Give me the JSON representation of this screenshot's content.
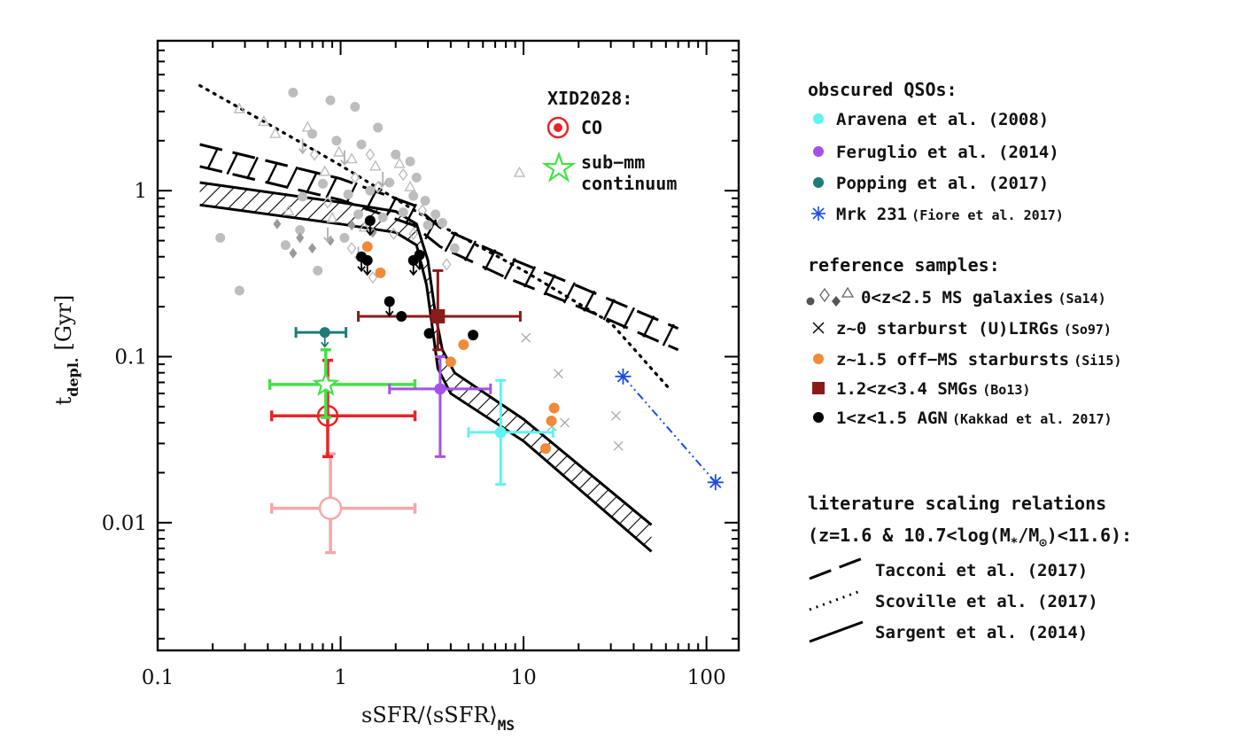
{
  "chart_data": {
    "type": "scatter",
    "xlabel_main": "sSFR/⟨sSFR⟩",
    "xlabel_sub": "MS",
    "ylabel_main": "t",
    "ylabel_sub": "depl.",
    "ylabel_unit": "[Gyr]",
    "xscale": "log",
    "yscale": "log",
    "xlim": [
      0.1,
      150
    ],
    "ylim": [
      0.0017,
      8
    ],
    "x_ticks": [
      {
        "v": 0.1,
        "label": "0.1"
      },
      {
        "v": 1,
        "label": "1"
      },
      {
        "v": 10,
        "label": "10"
      },
      {
        "v": 100,
        "label": "100"
      }
    ],
    "y_ticks": [
      {
        "v": 0.01,
        "label": "0.01"
      },
      {
        "v": 0.1,
        "label": "0.1"
      },
      {
        "v": 1,
        "label": "1"
      }
    ],
    "xid_title": "XID2028:",
    "xid_co_label": "CO",
    "xid_submm_label_1": "sub−mm",
    "xid_submm_label_2": "continuum",
    "legend": {
      "qso_header": "obscured QSOs:",
      "aravena": "Aravena et al. (2008)",
      "feruglio": "Feruglio et al. (2014)",
      "popping": "Popping et al. (2017)",
      "mrk_main": "Mrk 231",
      "mrk_ref": "(Fiore et al. 2017)",
      "ref_header": "reference samples:",
      "ms_main": "0<z<2.5 MS galaxies",
      "ms_ref": "(Sa14)",
      "ulirg_main": "z~0 starburst (U)LIRGs",
      "ulirg_ref": "(So97)",
      "offms_main": "z~1.5 off−MS starbursts",
      "offms_ref": "(Si15)",
      "smg_main": "1.2<z<3.4 SMGs",
      "smg_ref": "(Bo13)",
      "agn_main": "1<z<1.5 AGN",
      "agn_ref": "(Kakkad et al. 2017)",
      "lit_header_1": "literature scaling relations",
      "lit_header_2a": "(z=1.6 & 10.7<log(M",
      "lit_header_2b": "*",
      "lit_header_2c": "/M",
      "lit_header_2d": "⊙",
      "lit_header_2e": ")<11.6):",
      "tacconi": "Tacconi et al. (2017)",
      "scoville": "Scoville et al. (2017)",
      "sargent": "Sargent et al. (2014)"
    },
    "colors": {
      "aravena": "#5ff3f3",
      "feruglio": "#a352e8",
      "popping": "#1e7b78",
      "mrk": "#1a4de0",
      "offms": "#f28a3a",
      "smg": "#8b1a1a",
      "agn": "#000000",
      "ms": "#bdbdbd",
      "ulirg": "#a8a8a8",
      "co": "#e8242a",
      "co_faint": "#f4a8a8",
      "submm": "#46e046"
    },
    "series": [
      {
        "name": "Aravena et al. (2008)",
        "points": [
          {
            "x": 7.5,
            "y": 0.035,
            "xerr": [
              5.0,
              14.5
            ],
            "yerr": [
              0.017,
              0.072
            ]
          }
        ]
      },
      {
        "name": "Feruglio et al. (2014)",
        "points": [
          {
            "x": 3.5,
            "y": 0.064,
            "xerr": [
              1.85,
              6.6
            ],
            "yerr": [
              0.025,
              0.1
            ]
          }
        ]
      },
      {
        "name": "Popping et al. (2017)",
        "points": [
          {
            "x": 0.82,
            "y": 0.14,
            "xerr": [
              0.57,
              1.07
            ],
            "yerr": [
              0.11,
              0.16
            ]
          }
        ]
      },
      {
        "name": "Mrk 231",
        "points": [
          {
            "x": 35,
            "y": 0.076
          },
          {
            "x": 112,
            "y": 0.0175
          }
        ]
      },
      {
        "name": "1.2<z<3.4 SMGs",
        "points": [
          {
            "x": 3.4,
            "y": 0.175,
            "xerr": [
              1.25,
              9.6
            ],
            "yerr": [
              0.11,
              0.33
            ]
          }
        ]
      },
      {
        "name": "XID2028 CO",
        "points": [
          {
            "x": 0.85,
            "y": 0.044,
            "xerr": [
              0.42,
              2.55
            ],
            "yerr": [
              0.025,
              0.095
            ]
          }
        ]
      },
      {
        "name": "XID2028 CO (faint)",
        "points": [
          {
            "x": 0.88,
            "y": 0.0122,
            "xerr": [
              0.42,
              2.55
            ],
            "yerr": [
              0.0066,
              0.026
            ]
          }
        ]
      },
      {
        "name": "XID2028 sub-mm continuum",
        "points": [
          {
            "x": 0.83,
            "y": 0.068,
            "xerr": [
              0.41,
              2.55
            ],
            "yerr": [
              0.043,
              0.11
            ]
          }
        ]
      },
      {
        "name": "z~1.5 off-MS starbursts",
        "points": [
          {
            "x": 1.4,
            "y": 0.46
          },
          {
            "x": 1.65,
            "y": 0.32
          },
          {
            "x": 4.0,
            "y": 0.093
          },
          {
            "x": 4.7,
            "y": 0.118
          },
          {
            "x": 13.2,
            "y": 0.028
          },
          {
            "x": 14.2,
            "y": 0.041
          },
          {
            "x": 14.7,
            "y": 0.049
          }
        ]
      },
      {
        "name": "1<z<1.5 AGN",
        "upper_limit_x": [
          1.3,
          1.45,
          1.85,
          2.5,
          2.7,
          2.85
        ],
        "points": [
          {
            "x": 1.45,
            "y": 0.66
          },
          {
            "x": 1.3,
            "y": 0.4
          },
          {
            "x": 1.4,
            "y": 0.38
          },
          {
            "x": 2.5,
            "y": 0.38
          },
          {
            "x": 2.7,
            "y": 0.41
          },
          {
            "x": 1.85,
            "y": 0.215
          },
          {
            "x": 2.15,
            "y": 0.175
          },
          {
            "x": 3.05,
            "y": 0.138
          },
          {
            "x": 5.3,
            "y": 0.135
          }
        ]
      },
      {
        "name": "z~0 starburst (U)LIRGs",
        "points": [
          {
            "x": 10.3,
            "y": 0.13
          },
          {
            "x": 15.5,
            "y": 0.079
          },
          {
            "x": 14.3,
            "y": 0.038
          },
          {
            "x": 16.8,
            "y": 0.04
          },
          {
            "x": 32,
            "y": 0.044
          },
          {
            "x": 33,
            "y": 0.029
          }
        ]
      },
      {
        "name": "0<z<2.5 MS galaxies",
        "points": [
          {
            "x": 0.55,
            "y": 3.9
          },
          {
            "x": 0.88,
            "y": 3.5
          },
          {
            "x": 1.2,
            "y": 3.2
          },
          {
            "x": 0.7,
            "y": 2.2
          },
          {
            "x": 0.95,
            "y": 2.0
          },
          {
            "x": 1.3,
            "y": 1.9
          },
          {
            "x": 1.6,
            "y": 2.4
          },
          {
            "x": 2.0,
            "y": 1.65
          },
          {
            "x": 2.4,
            "y": 1.5
          },
          {
            "x": 2.6,
            "y": 1.2
          },
          {
            "x": 1.85,
            "y": 1.12
          },
          {
            "x": 1.45,
            "y": 1.0
          },
          {
            "x": 1.1,
            "y": 0.95
          },
          {
            "x": 0.8,
            "y": 1.1
          },
          {
            "x": 0.62,
            "y": 0.92
          },
          {
            "x": 2.9,
            "y": 0.87
          },
          {
            "x": 3.3,
            "y": 0.72
          },
          {
            "x": 3.6,
            "y": 0.64
          },
          {
            "x": 2.2,
            "y": 0.74
          },
          {
            "x": 1.7,
            "y": 0.69
          },
          {
            "x": 0.22,
            "y": 0.52
          },
          {
            "x": 0.28,
            "y": 0.25
          },
          {
            "x": 0.6,
            "y": 0.58
          },
          {
            "x": 4.2,
            "y": 0.45
          },
          {
            "x": 3.0,
            "y": 0.62
          },
          {
            "x": 2.5,
            "y": 0.93
          },
          {
            "x": 0.5,
            "y": 0.47
          },
          {
            "x": 0.75,
            "y": 0.33
          },
          {
            "x": 1.05,
            "y": 0.52
          },
          {
            "x": 1.25,
            "y": 0.72
          }
        ]
      },
      {
        "name": "MS triangles",
        "points": [
          {
            "x": 0.28,
            "y": 3.1
          },
          {
            "x": 0.38,
            "y": 2.6
          },
          {
            "x": 0.44,
            "y": 2.2
          },
          {
            "x": 0.66,
            "y": 2.4
          },
          {
            "x": 0.98,
            "y": 1.7
          },
          {
            "x": 1.15,
            "y": 1.55
          },
          {
            "x": 1.55,
            "y": 1.4
          },
          {
            "x": 2.1,
            "y": 1.45
          },
          {
            "x": 2.4,
            "y": 1.05
          },
          {
            "x": 0.82,
            "y": 1.3
          },
          {
            "x": 0.9,
            "y": 0.68
          },
          {
            "x": 1.35,
            "y": 0.6
          },
          {
            "x": 0.52,
            "y": 0.75
          },
          {
            "x": 9.5,
            "y": 1.28
          }
        ]
      },
      {
        "name": "MS diamonds",
        "points": [
          {
            "x": 0.72,
            "y": 1.65
          },
          {
            "x": 1.45,
            "y": 1.65
          },
          {
            "x": 1.6,
            "y": 1.05
          },
          {
            "x": 1.2,
            "y": 1.2
          },
          {
            "x": 2.2,
            "y": 1.25
          },
          {
            "x": 2.8,
            "y": 0.76
          },
          {
            "x": 1.95,
            "y": 0.55
          },
          {
            "x": 1.15,
            "y": 0.45
          },
          {
            "x": 1.5,
            "y": 0.3
          },
          {
            "x": 3.8,
            "y": 0.36
          },
          {
            "x": 2.5,
            "y": 0.55
          },
          {
            "x": 0.85,
            "y": 0.85
          }
        ]
      },
      {
        "name": "MS filled diamonds",
        "points": [
          {
            "x": 0.45,
            "y": 0.63
          },
          {
            "x": 0.6,
            "y": 0.52
          },
          {
            "x": 0.55,
            "y": 0.42
          },
          {
            "x": 0.88,
            "y": 0.5
          },
          {
            "x": 1.15,
            "y": 0.62
          },
          {
            "x": 1.5,
            "y": 0.56
          },
          {
            "x": 0.7,
            "y": 0.45
          }
        ]
      },
      {
        "name": "MS upper limits",
        "points": [
          {
            "x": 0.62,
            "y": 2.05
          },
          {
            "x": 1.05,
            "y": 1.75
          },
          {
            "x": 0.85,
            "y": 0.6
          },
          {
            "x": 1.25,
            "y": 0.46
          },
          {
            "x": 1.7,
            "y": 1.3
          }
        ]
      }
    ],
    "relations": {
      "tacconi": {
        "upper": [
          [
            0.17,
            1.9
          ],
          [
            1.0,
            1.18
          ],
          [
            2.5,
            0.82
          ],
          [
            3.5,
            0.6
          ],
          [
            8,
            0.4
          ],
          [
            20,
            0.265
          ],
          [
            70,
            0.148
          ]
        ],
        "lower": [
          [
            0.17,
            1.4
          ],
          [
            1.0,
            0.88
          ],
          [
            2.5,
            0.62
          ],
          [
            3.5,
            0.46
          ],
          [
            8,
            0.3
          ],
          [
            20,
            0.2
          ],
          [
            70,
            0.11
          ]
        ]
      },
      "scoville": [
        [
          0.17,
          4.3
        ],
        [
          0.5,
          2.2
        ],
        [
          1,
          1.42
        ],
        [
          3,
          0.68
        ],
        [
          10,
          0.33
        ],
        [
          30,
          0.16
        ],
        [
          62,
          0.065
        ]
      ],
      "sargent": {
        "upper": [
          [
            0.17,
            1.12
          ],
          [
            1.0,
            0.85
          ],
          [
            2.0,
            0.75
          ],
          [
            2.6,
            0.63
          ],
          [
            3.0,
            0.38
          ],
          [
            3.3,
            0.18
          ],
          [
            3.6,
            0.11
          ],
          [
            4.2,
            0.08
          ],
          [
            10,
            0.042
          ],
          [
            50,
            0.0097
          ]
        ],
        "lower": [
          [
            0.17,
            0.82
          ],
          [
            1.0,
            0.63
          ],
          [
            2.0,
            0.56
          ],
          [
            2.6,
            0.47
          ],
          [
            2.95,
            0.27
          ],
          [
            3.2,
            0.14
          ],
          [
            3.4,
            0.085
          ],
          [
            4.0,
            0.06
          ],
          [
            10,
            0.031
          ],
          [
            50,
            0.0067
          ]
        ]
      }
    }
  }
}
